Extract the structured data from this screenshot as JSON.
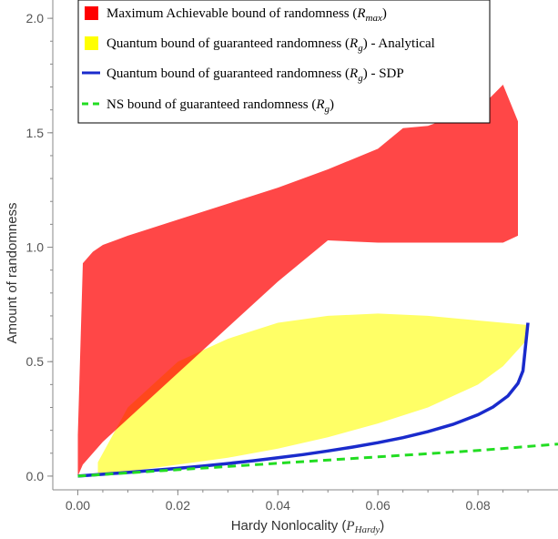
{
  "chart_data": {
    "type": "area",
    "xlabel": "Hardy Nonlocality (",
    "xlabel_sym": "P",
    "xlabel_sub": "Hardy",
    "xlabel_close": ")",
    "ylabel": "Amount of randomness",
    "xlim": [
      -0.005,
      0.096
    ],
    "ylim": [
      -0.06,
      2.08
    ],
    "xticks": [
      0.0,
      0.02,
      0.04,
      0.06,
      0.08
    ],
    "xtick_labels": [
      "0.00",
      "0.02",
      "0.04",
      "0.06",
      "0.08"
    ],
    "yticks": [
      0.0,
      0.5,
      1.0,
      1.5,
      2.0
    ],
    "ytick_labels": [
      "0.0",
      "0.5",
      "1.0",
      "1.5",
      "2.0"
    ],
    "grid": false,
    "legend_position": "top",
    "series": [
      {
        "name": "Maximum Achievable bound of randomness",
        "symbol": "R",
        "subscript": "max",
        "kind": "region",
        "color": "#ff0000",
        "x": [
          0.0,
          0.001,
          0.003,
          0.005,
          0.01,
          0.02,
          0.03,
          0.04,
          0.05,
          0.06,
          0.065,
          0.07,
          0.075,
          0.08,
          0.085,
          0.088
        ],
        "upper": [
          0.18,
          0.93,
          0.98,
          1.01,
          1.05,
          1.12,
          1.19,
          1.26,
          1.34,
          1.43,
          1.52,
          1.53,
          1.57,
          1.6,
          1.71,
          1.55
        ],
        "lower": [
          0.0,
          0.05,
          0.1,
          0.15,
          0.25,
          0.45,
          0.65,
          0.85,
          1.03,
          1.02,
          1.02,
          1.02,
          1.02,
          1.02,
          1.02,
          1.05
        ]
      },
      {
        "name": "Quantum bound of guaranteed randomness",
        "symbol": "R",
        "subscript": "g",
        "suffix": " - Analytical",
        "kind": "region",
        "color": "#ffff00",
        "x": [
          0.004,
          0.01,
          0.02,
          0.03,
          0.04,
          0.05,
          0.06,
          0.07,
          0.08,
          0.085,
          0.09
        ],
        "upper": [
          0.06,
          0.3,
          0.5,
          0.6,
          0.67,
          0.7,
          0.71,
          0.7,
          0.68,
          0.67,
          0.66
        ],
        "lower": [
          0.01,
          0.02,
          0.05,
          0.08,
          0.12,
          0.17,
          0.23,
          0.3,
          0.4,
          0.48,
          0.6
        ]
      },
      {
        "name": "Quantum bound of guaranteed randomness",
        "symbol": "R",
        "subscript": "g",
        "suffix": " - SDP",
        "kind": "line",
        "color": "#1a2bcc",
        "x": [
          0.0,
          0.005,
          0.01,
          0.015,
          0.02,
          0.025,
          0.03,
          0.035,
          0.04,
          0.045,
          0.05,
          0.055,
          0.06,
          0.065,
          0.07,
          0.075,
          0.08,
          0.083,
          0.086,
          0.088,
          0.089,
          0.09
        ],
        "y": [
          0.0,
          0.008,
          0.016,
          0.025,
          0.034,
          0.044,
          0.055,
          0.067,
          0.08,
          0.094,
          0.11,
          0.127,
          0.146,
          0.168,
          0.194,
          0.226,
          0.268,
          0.302,
          0.35,
          0.405,
          0.46,
          0.67
        ]
      },
      {
        "name": "NS bound of guaranteed randomness",
        "symbol": "R",
        "subscript": "g",
        "suffix": "",
        "kind": "dashed-line",
        "color": "#22dd22",
        "x": [
          0.0,
          0.02,
          0.04,
          0.06,
          0.08,
          0.096
        ],
        "y": [
          0.0,
          0.028,
          0.056,
          0.084,
          0.112,
          0.14
        ]
      }
    ]
  }
}
